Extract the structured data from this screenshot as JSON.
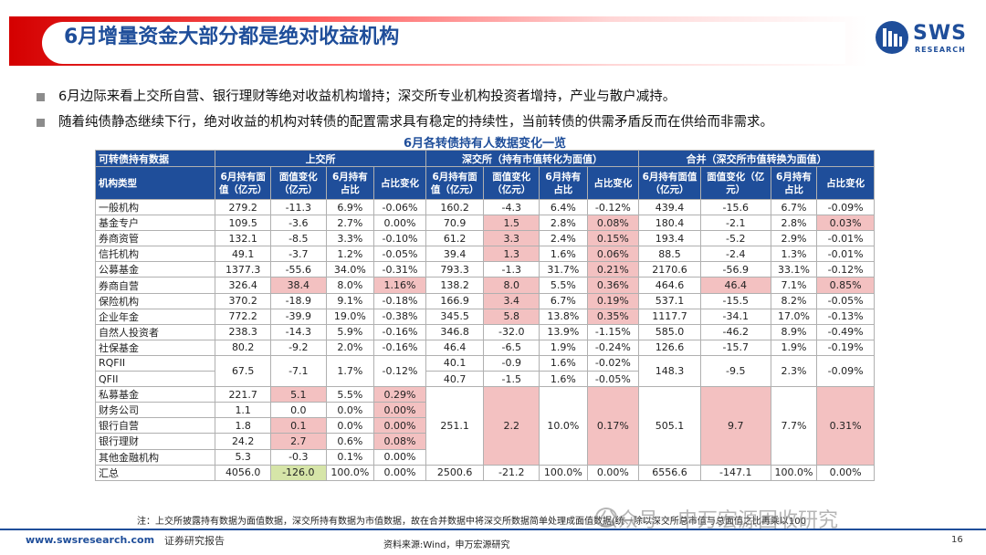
{
  "title": "6月增量资金大部分都是绝对收益机构",
  "logo": {
    "brand": "SWS",
    "sub": "RESEARCH"
  },
  "bullets": [
    "6月边际来看上交所自营、银行理财等绝对收益机构增持；深交所专业机构投资者增持，产业与散户减持。",
    "随着纯债静态继续下行，绝对收益的机构对转债的配置需求具有稳定的持续性，当前转债的供需矛盾反而在供给而非需求。"
  ],
  "table": {
    "title": "6月各转债持有人数据变化一览",
    "header1": [
      "可转债持有数据",
      "上交所",
      "深交所（持有市值转化为面值）",
      "合并（深交所市值转换为面值）"
    ],
    "header2": [
      "机构类型",
      "6月持有面值（亿元）",
      "面值变化（亿元）",
      "6月持有占比",
      "占比变化",
      "6月持有面值（亿元）",
      "面值变化（亿元）",
      "6月持有占比",
      "占比变化",
      "6月持有面值（亿元）",
      "面值变化（亿元）",
      "6月持有占比",
      "占比变化"
    ],
    "rows": [
      {
        "name": "一般机构",
        "sh": [
          "279.2",
          "-11.3",
          "6.9%",
          "-0.06%"
        ],
        "sz": [
          "160.2",
          "-4.3",
          "6.4%",
          "-0.12%"
        ],
        "hb": [
          "439.4",
          "-15.6",
          "6.7%",
          "-0.09%"
        ]
      },
      {
        "name": "基金专户",
        "sh": [
          "109.5",
          "-3.6",
          "2.7%",
          "0.00%"
        ],
        "sz": [
          "70.9",
          "1.5",
          "2.8%",
          "0.08%"
        ],
        "hb": [
          "180.4",
          "-2.1",
          "2.8%",
          "0.03%"
        ]
      },
      {
        "name": "券商资管",
        "sh": [
          "132.1",
          "-8.5",
          "3.3%",
          "-0.10%"
        ],
        "sz": [
          "61.2",
          "3.3",
          "2.4%",
          "0.15%"
        ],
        "hb": [
          "193.4",
          "-5.2",
          "2.9%",
          "-0.01%"
        ]
      },
      {
        "name": "信托机构",
        "sh": [
          "49.1",
          "-3.7",
          "1.2%",
          "-0.05%"
        ],
        "sz": [
          "39.4",
          "1.3",
          "1.6%",
          "0.06%"
        ],
        "hb": [
          "88.5",
          "-2.4",
          "1.3%",
          "-0.01%"
        ]
      },
      {
        "name": "公募基金",
        "sh": [
          "1377.3",
          "-55.6",
          "34.0%",
          "-0.31%"
        ],
        "sz": [
          "793.3",
          "-1.3",
          "31.7%",
          "0.21%"
        ],
        "hb": [
          "2170.6",
          "-56.9",
          "33.1%",
          "-0.12%"
        ]
      },
      {
        "name": "券商自营",
        "sh": [
          "326.4",
          "38.4",
          "8.0%",
          "1.16%"
        ],
        "sz": [
          "138.2",
          "8.0",
          "5.5%",
          "0.36%"
        ],
        "hb": [
          "464.6",
          "46.4",
          "7.1%",
          "0.85%"
        ]
      },
      {
        "name": "保险机构",
        "sh": [
          "370.2",
          "-18.9",
          "9.1%",
          "-0.18%"
        ],
        "sz": [
          "166.9",
          "3.4",
          "6.7%",
          "0.19%"
        ],
        "hb": [
          "537.1",
          "-15.5",
          "8.2%",
          "-0.05%"
        ]
      },
      {
        "name": "企业年金",
        "sh": [
          "772.2",
          "-39.9",
          "19.0%",
          "-0.38%"
        ],
        "sz": [
          "345.5",
          "5.8",
          "13.8%",
          "0.35%"
        ],
        "hb": [
          "1117.7",
          "-34.1",
          "17.0%",
          "-0.13%"
        ]
      },
      {
        "name": "自然人投资者",
        "sh": [
          "238.3",
          "-14.3",
          "5.9%",
          "-0.16%"
        ],
        "sz": [
          "346.8",
          "-32.0",
          "13.9%",
          "-1.15%"
        ],
        "hb": [
          "585.0",
          "-46.2",
          "8.9%",
          "-0.49%"
        ]
      },
      {
        "name": "社保基金",
        "sh": [
          "80.2",
          "-9.2",
          "2.0%",
          "-0.16%"
        ],
        "sz": [
          "46.4",
          "-6.5",
          "1.9%",
          "-0.24%"
        ],
        "hb": [
          "126.6",
          "-15.7",
          "1.9%",
          "-0.19%"
        ]
      }
    ],
    "rqfii": {
      "names": [
        "RQFII",
        "QFII"
      ],
      "sh": [
        "67.5",
        "-7.1",
        "1.7%",
        "-0.12%"
      ],
      "sz": [
        [
          "40.1",
          "-0.9",
          "1.6%",
          "-0.02%"
        ],
        [
          "40.7",
          "-1.5",
          "1.6%",
          "-0.05%"
        ]
      ],
      "hb": [
        "148.3",
        "-9.5",
        "2.3%",
        "-0.09%"
      ]
    },
    "others": {
      "names": [
        "私募基金",
        "财务公司",
        "银行自营",
        "银行理财",
        "其他金融机构"
      ],
      "sh": [
        [
          "221.7",
          "5.1",
          "5.5%",
          "0.29%"
        ],
        [
          "1.1",
          "0.0",
          "0.0%",
          "0.00%"
        ],
        [
          "1.8",
          "0.1",
          "0.0%",
          "0.00%"
        ],
        [
          "24.2",
          "2.7",
          "0.6%",
          "0.08%"
        ],
        [
          "5.3",
          "-0.3",
          "0.1%",
          "0.00%"
        ]
      ],
      "sz": [
        "251.1",
        "2.2",
        "10.0%",
        "0.17%"
      ],
      "hb": [
        "505.1",
        "9.7",
        "7.7%",
        "0.31%"
      ]
    },
    "total": {
      "name": "汇总",
      "sh": [
        "4056.0",
        "-126.0",
        "100.0%",
        "0.00%"
      ],
      "sz": [
        "2500.6",
        "-21.2",
        "100.0%",
        "0.00%"
      ],
      "hb": [
        "6556.6",
        "-147.1",
        "100.0%",
        "0.00%"
      ]
    }
  },
  "note": "注：上交所披露持有数据为面值数据，深交所持有数据为市值数据，故在合并数据中将深交所数据简单处理成面值数据(统一除以深交所总市值与总面值之比再乘以100",
  "footer": {
    "website": "www.swsresearch.com",
    "report": "证券研究报告",
    "source": "资料来源:Wind，申万宏源研究",
    "page": "16",
    "watermark": "公众号 · 申万宏源固收研究"
  },
  "colors": {
    "brand_blue": "#1f4e9a",
    "highlight_pink": "#f3c1c1",
    "title_red": "#d40000"
  }
}
